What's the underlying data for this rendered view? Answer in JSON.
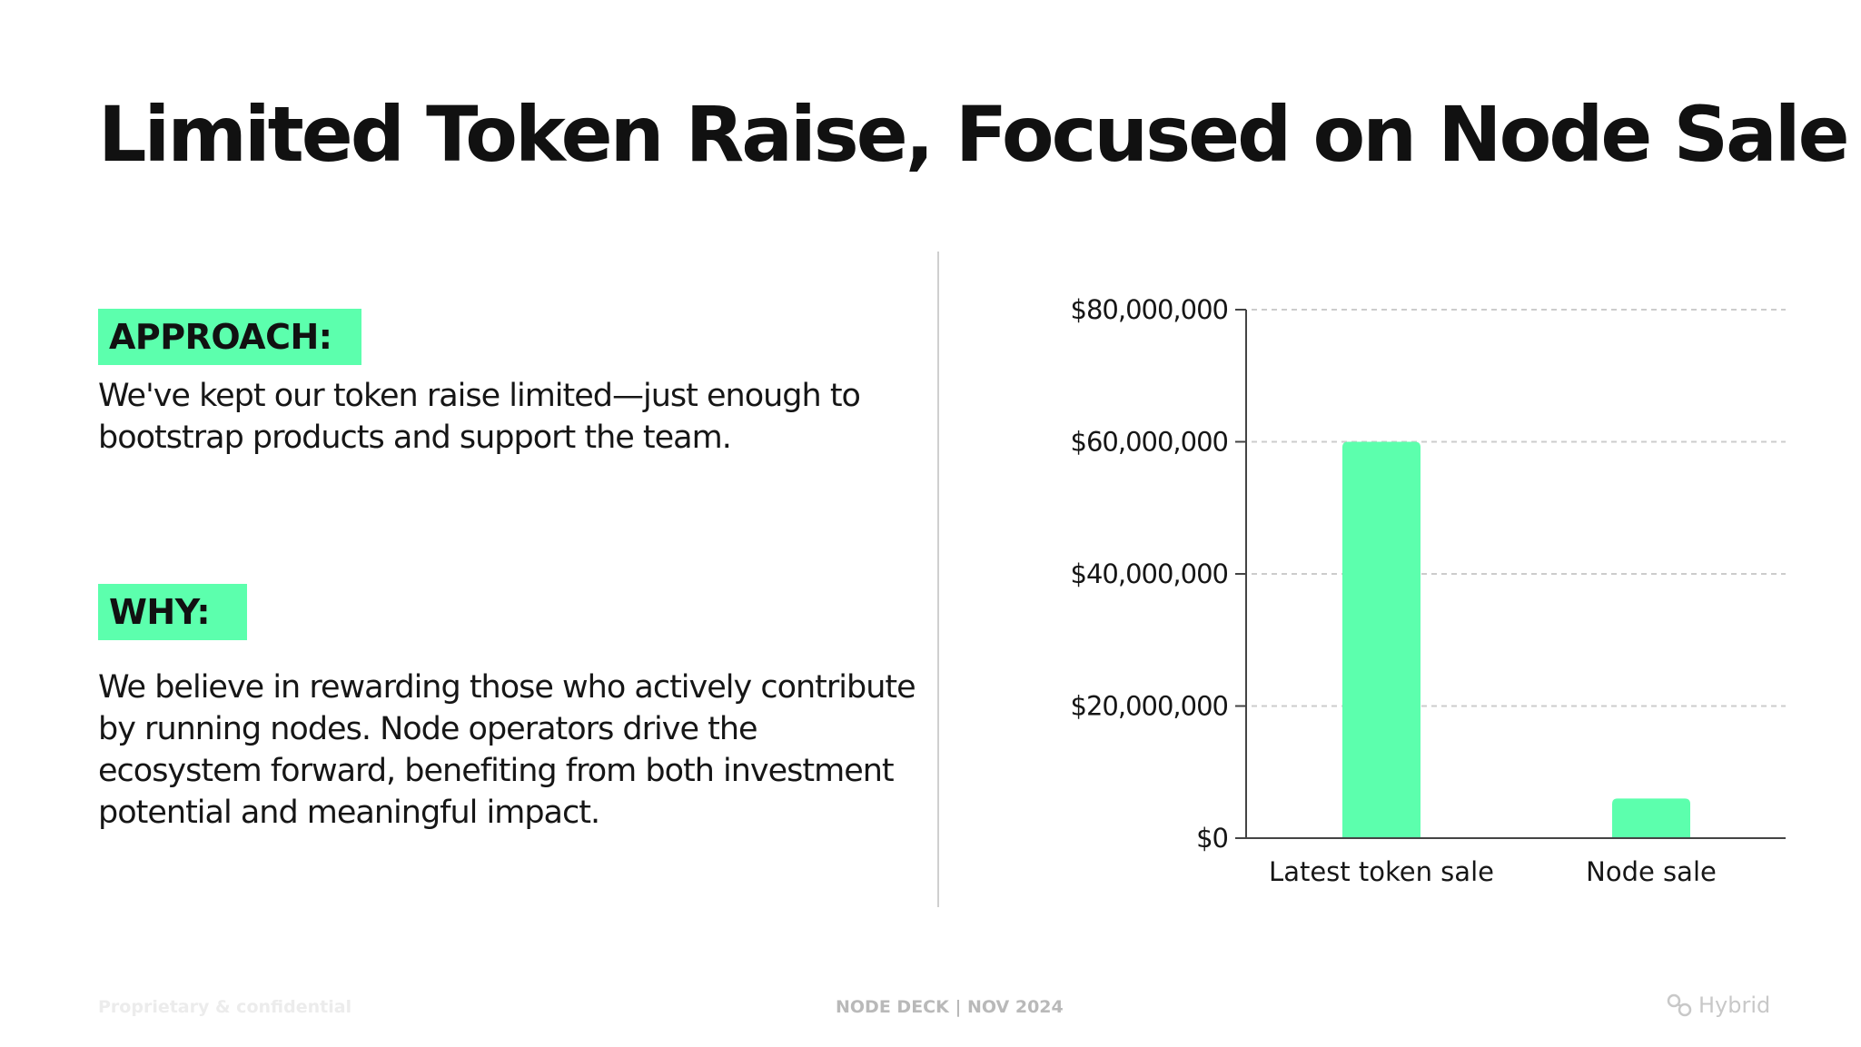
{
  "slide": {
    "title": "Limited Token Raise, Focused on Node Sale"
  },
  "approach": {
    "label": "APPROACH:",
    "text": "We've kept our token raise limited—just enough to bootstrap products and support the team."
  },
  "why": {
    "label": "WHY:",
    "text": "We believe in rewarding those who actively contribute by running nodes. Node operators drive the ecosystem forward, benefiting from both investment potential and meaningful impact."
  },
  "colors": {
    "accent": "#5cffad",
    "text": "#111111",
    "grid": "#cccccc"
  },
  "chart_data": {
    "type": "bar",
    "categories": [
      "Latest token sale",
      "Node sale"
    ],
    "values": [
      60000000,
      6000000
    ],
    "ylim": [
      0,
      80000000
    ],
    "yticks": [
      0,
      20000000,
      40000000,
      60000000,
      80000000
    ],
    "ytick_labels": [
      "$0",
      "$20,000,000",
      "$40,000,000",
      "$60,000,000",
      "$80,000,000"
    ],
    "grid": true,
    "grid_style": "dashed",
    "legend": "none",
    "title": "",
    "xlabel": "",
    "ylabel": ""
  },
  "footer": {
    "left": "Proprietary & confidential",
    "center": "NODE DECK | NOV 2024",
    "brand": "Hybrid",
    "brand_icon": "hybrid-logo-icon"
  }
}
